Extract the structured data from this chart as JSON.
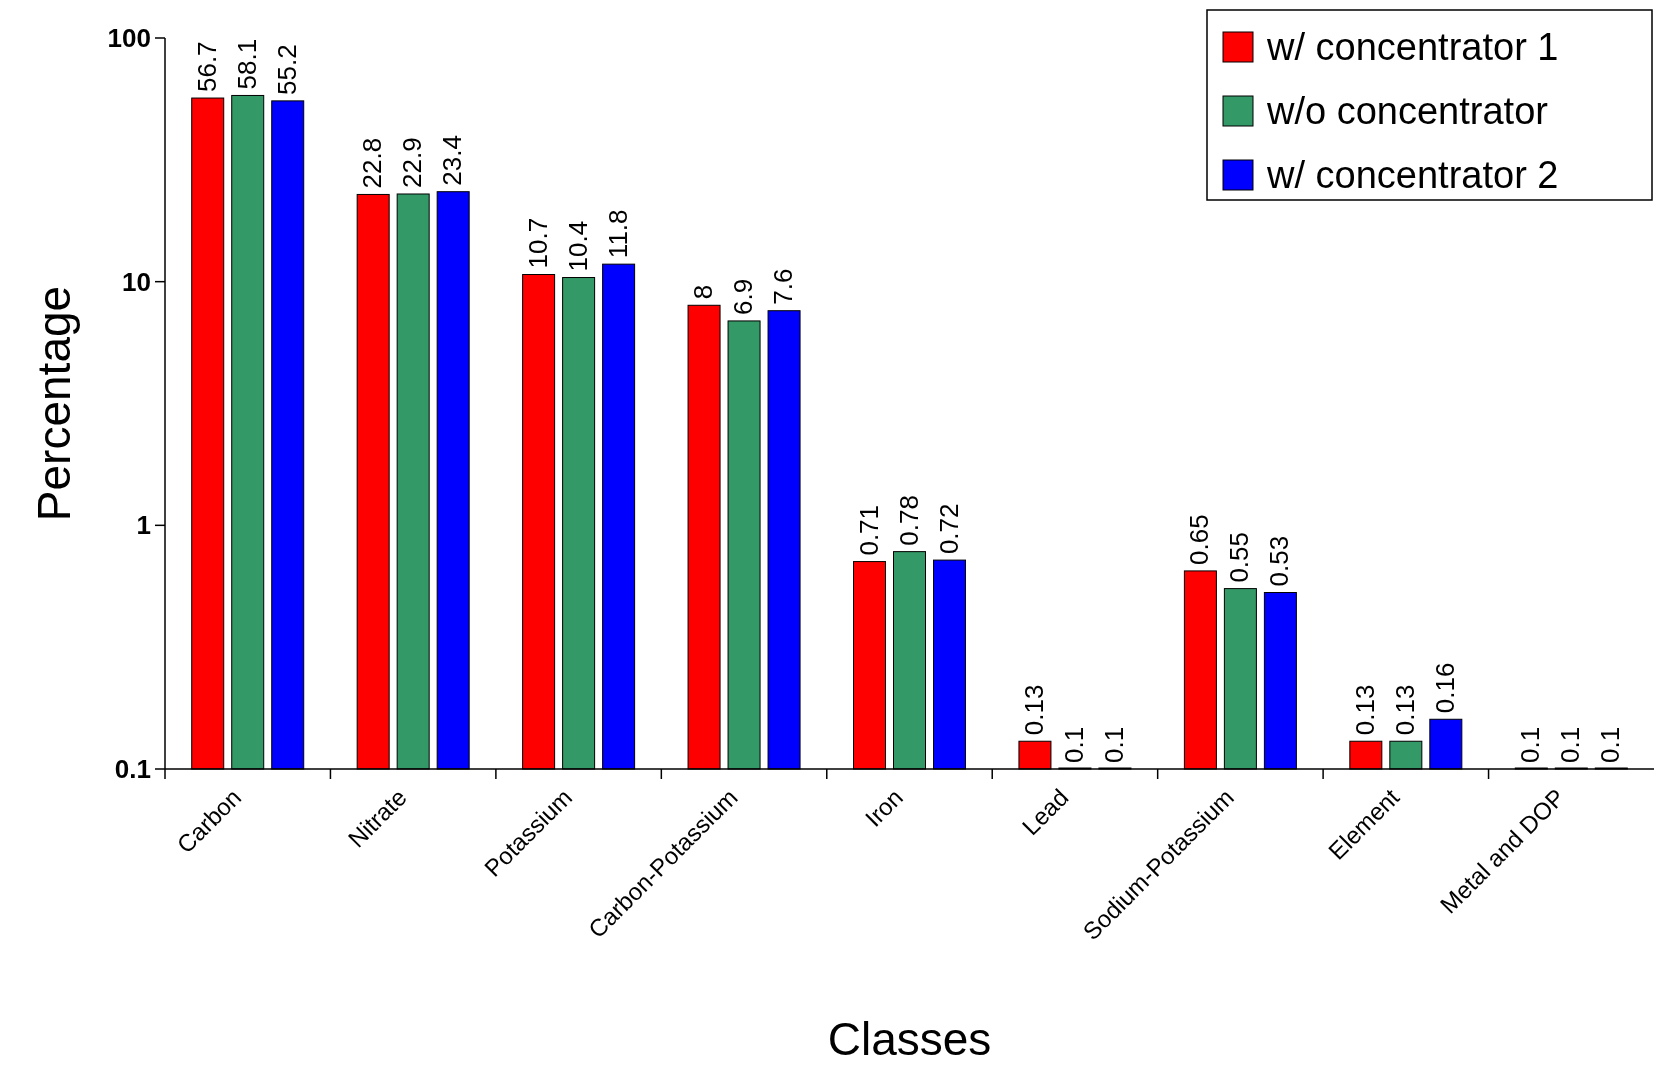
{
  "chart_data": {
    "type": "bar",
    "xlabel": "Classes",
    "ylabel": "Percentage",
    "categories": [
      "Carbon",
      "Nitrate",
      "Potassium",
      "Carbon-Potassium",
      "Iron",
      "Lead",
      "Sodium-Potassium",
      "Element",
      "Metal and DOP"
    ],
    "series": [
      {
        "name": "w/ concentrator 1",
        "color": "#ff0000",
        "values": [
          56.7,
          22.8,
          10.7,
          8,
          0.71,
          0.13,
          0.65,
          0.13,
          0.1
        ]
      },
      {
        "name": "w/o concentrator",
        "color": "#339966",
        "values": [
          58.1,
          22.9,
          10.4,
          6.9,
          0.78,
          0.1,
          0.55,
          0.13,
          0.1
        ]
      },
      {
        "name": "w/ concentrator 2",
        "color": "#0000ff",
        "values": [
          55.2,
          23.4,
          11.8,
          7.6,
          0.72,
          0.1,
          0.53,
          0.16,
          0.1
        ]
      }
    ],
    "log": true,
    "ylim": [
      0.1,
      100
    ],
    "yticks": [
      0.1,
      1,
      10,
      100
    ],
    "data_labels": true,
    "legend": "top right",
    "grid": false
  }
}
